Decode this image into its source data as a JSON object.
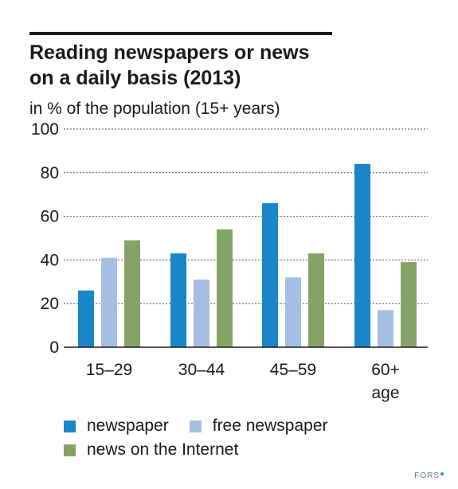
{
  "chart_data": {
    "type": "bar",
    "title_lines": [
      "Reading newspapers or news",
      "on a daily basis (2013)"
    ],
    "subtitle": "in % of the population (15+ years)",
    "categories": [
      [
        "15–29"
      ],
      [
        "30–44"
      ],
      [
        "45–59"
      ],
      [
        "60+",
        "age"
      ]
    ],
    "series": [
      {
        "name": "newspaper",
        "color": "#1a85c9",
        "values": [
          26,
          43,
          66,
          84
        ]
      },
      {
        "name": "free newspaper",
        "color": "#a5bfe3",
        "values": [
          41,
          31,
          32,
          17
        ]
      },
      {
        "name": "news on the Internet",
        "color": "#86a366",
        "values": [
          49,
          54,
          43,
          39
        ]
      }
    ],
    "ylim": [
      0,
      100
    ],
    "yticks": [
      "0",
      "20",
      "40",
      "60",
      "80",
      "100"
    ],
    "grid": true,
    "legend_position": "bottom"
  },
  "source": "FORS"
}
